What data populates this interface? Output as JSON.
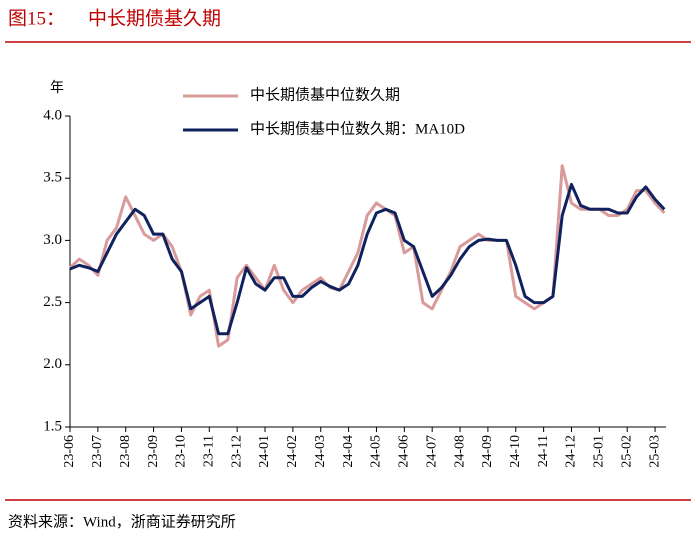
{
  "figure_label": "图15：",
  "chart_data": {
    "type": "line",
    "title": "中长期债基久期",
    "y_unit": "年",
    "source": "资料来源：Wind，浙商证券研究所",
    "categories": [
      "23-06",
      null,
      null,
      "23-07",
      null,
      null,
      "23-08",
      null,
      null,
      "23-09",
      null,
      null,
      "23-10",
      null,
      null,
      "23-11",
      null,
      null,
      "23-12",
      null,
      null,
      "24-01",
      null,
      null,
      "24-02",
      null,
      null,
      "24-03",
      null,
      null,
      "24-04",
      null,
      null,
      "24-05",
      null,
      null,
      "24-06",
      null,
      null,
      "24-07",
      null,
      null,
      "24-08",
      null,
      null,
      "24-09",
      null,
      null,
      "24-10",
      null,
      null,
      "24-11",
      null,
      null,
      "24-12",
      null,
      null,
      "25-01",
      null,
      null,
      "25-02",
      null,
      null,
      "25-03",
      null
    ],
    "series": [
      {
        "name": "中长期债基中位数久期",
        "color": "#d99a9a",
        "width": 3,
        "values": [
          2.78,
          2.85,
          2.8,
          2.72,
          3.0,
          3.1,
          3.35,
          3.2,
          3.05,
          3.0,
          3.05,
          2.95,
          2.75,
          2.4,
          2.55,
          2.6,
          2.15,
          2.2,
          2.7,
          2.8,
          2.7,
          2.6,
          2.8,
          2.6,
          2.5,
          2.6,
          2.65,
          2.7,
          2.62,
          2.6,
          2.75,
          2.9,
          3.2,
          3.3,
          3.25,
          3.2,
          2.9,
          2.95,
          2.5,
          2.45,
          2.6,
          2.75,
          2.95,
          3.0,
          3.05,
          3.0,
          3.0,
          3.0,
          2.55,
          2.5,
          2.45,
          2.5,
          2.55,
          3.6,
          3.3,
          3.25,
          3.25,
          3.25,
          3.2,
          3.2,
          3.25,
          3.4,
          3.4,
          3.3,
          3.22
        ]
      },
      {
        "name": "中长期债基中位数久期：MA10D",
        "color": "#10225e",
        "width": 3,
        "values": [
          2.77,
          2.8,
          2.78,
          2.75,
          2.9,
          3.05,
          3.15,
          3.25,
          3.2,
          3.05,
          3.05,
          2.85,
          2.75,
          2.45,
          2.5,
          2.55,
          2.25,
          2.25,
          2.5,
          2.78,
          2.65,
          2.6,
          2.7,
          2.7,
          2.55,
          2.55,
          2.62,
          2.67,
          2.63,
          2.6,
          2.65,
          2.8,
          3.05,
          3.22,
          3.25,
          3.22,
          3.0,
          2.95,
          2.75,
          2.55,
          2.62,
          2.72,
          2.85,
          2.95,
          3.0,
          3.01,
          3.0,
          3.0,
          2.8,
          2.55,
          2.5,
          2.5,
          2.55,
          3.2,
          3.45,
          3.28,
          3.25,
          3.25,
          3.25,
          3.22,
          3.22,
          3.35,
          3.43,
          3.33,
          3.25
        ]
      }
    ],
    "ylim": [
      1.5,
      4.0
    ],
    "yticks": [
      {
        "value": 1.5,
        "label": "1.5"
      },
      {
        "value": 2,
        "label": "2.0"
      },
      {
        "value": 2.5,
        "label": "2.5"
      },
      {
        "value": 3,
        "label": "3.0"
      },
      {
        "value": 3.5,
        "label": "3.5"
      },
      {
        "value": 4,
        "label": "4.0"
      }
    ],
    "legend": "top"
  }
}
